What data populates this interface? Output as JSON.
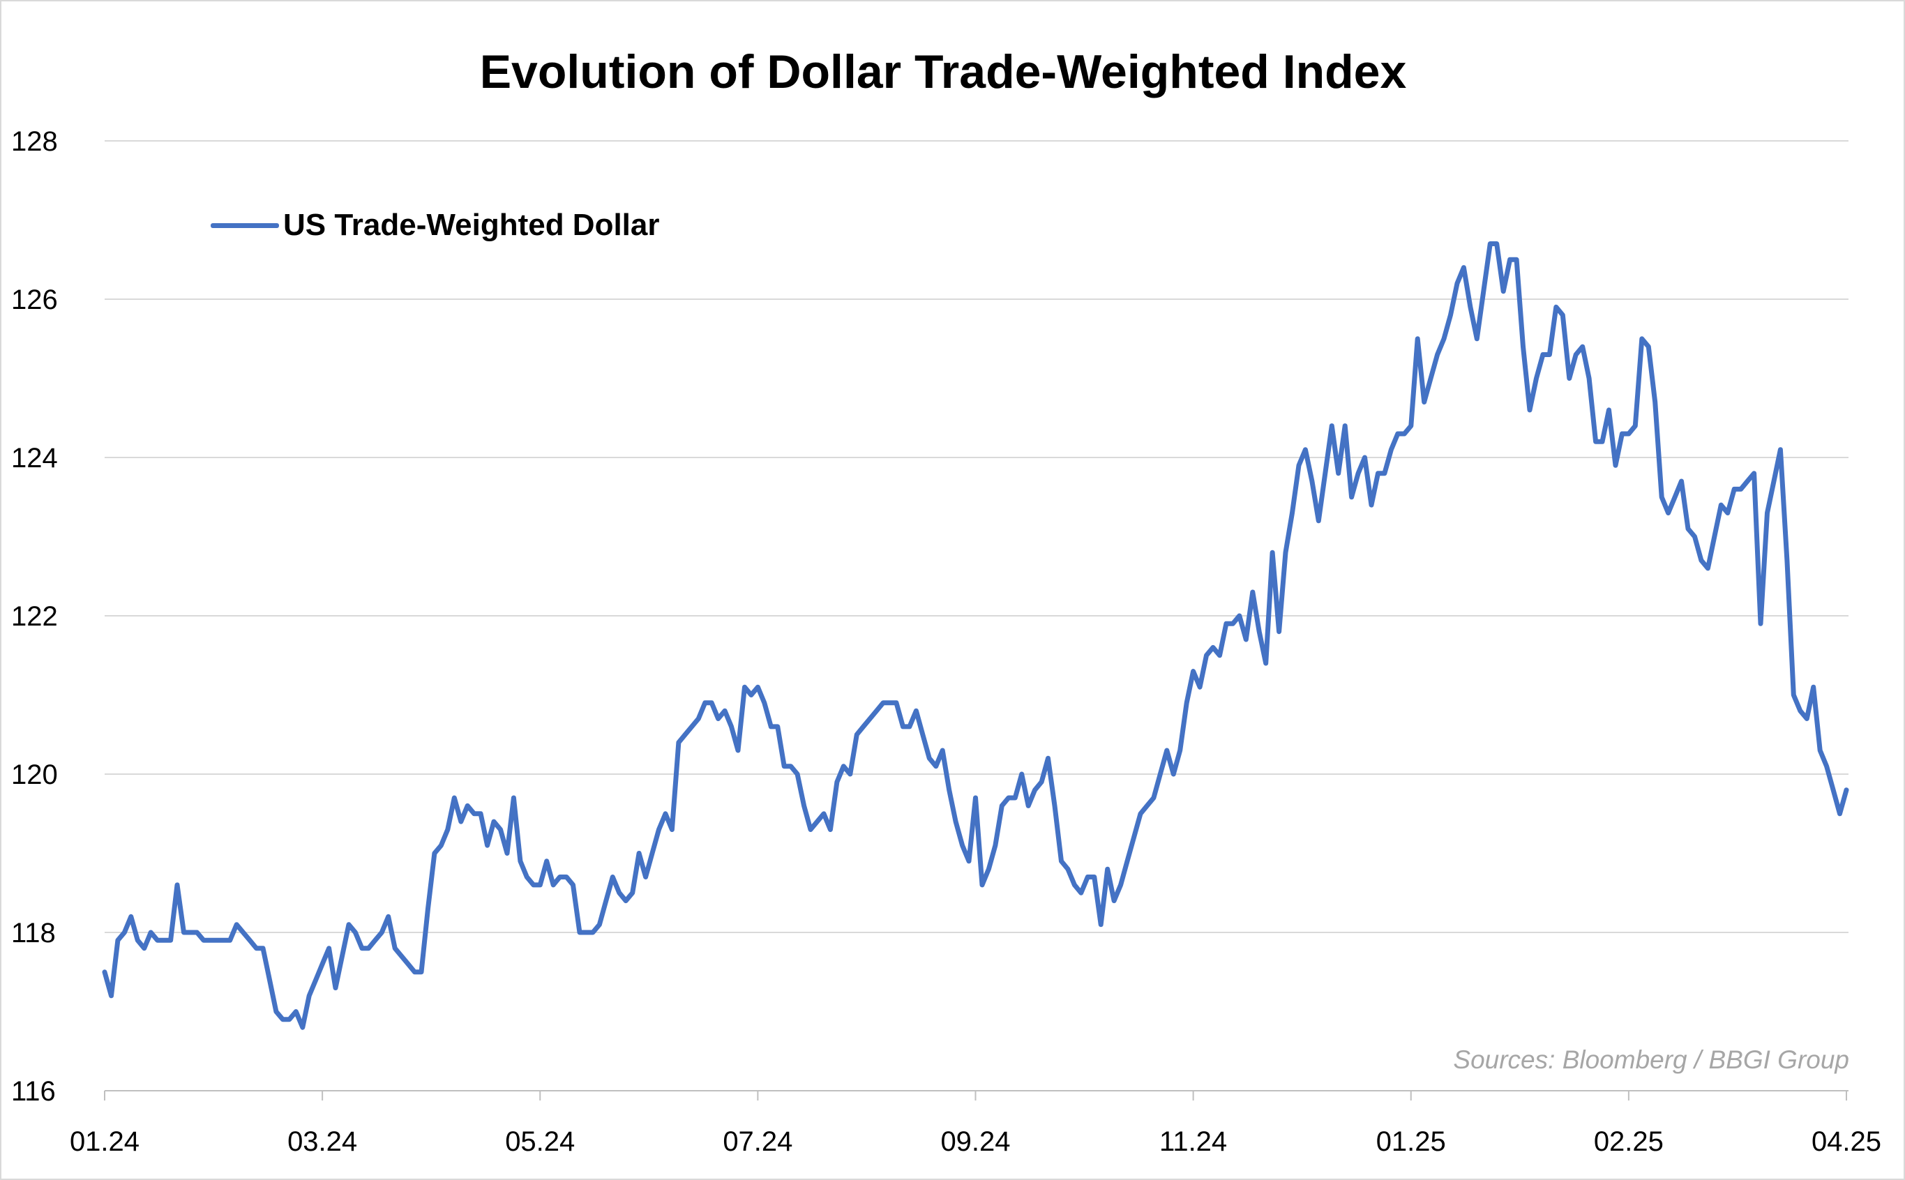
{
  "chart_data": {
    "type": "line",
    "title": "Evolution of Dollar Trade-Weighted Index",
    "source": "Sources: Bloomberg / BBGI Group",
    "xlabel": "",
    "ylabel": "",
    "ylim": [
      116,
      128
    ],
    "yticks": [
      "116",
      "118",
      "120",
      "122",
      "124",
      "126",
      "128"
    ],
    "xticks": [
      "01.24",
      "03.24",
      "05.24",
      "07.24",
      "09.24",
      "11.24",
      "01.25",
      "02.25",
      "04.25"
    ],
    "grid": "horizontal",
    "legend_position": "top-left",
    "series": [
      {
        "name": "US Trade-Weighted Dollar",
        "color": "#4472c4",
        "x_start": "01.24",
        "x_end": "04.25",
        "values": [
          117.5,
          117.2,
          117.9,
          118.0,
          118.2,
          117.9,
          117.8,
          118.0,
          117.9,
          117.9,
          117.9,
          118.6,
          118.0,
          118.0,
          118.0,
          117.9,
          117.9,
          117.9,
          117.9,
          117.9,
          118.1,
          118.0,
          117.9,
          117.8,
          117.8,
          117.4,
          117.0,
          116.9,
          116.9,
          117.0,
          116.8,
          117.2,
          117.4,
          117.6,
          117.8,
          117.3,
          117.7,
          118.1,
          118.0,
          117.8,
          117.8,
          117.9,
          118.0,
          118.2,
          117.8,
          117.7,
          117.6,
          117.5,
          117.5,
          118.3,
          119.0,
          119.1,
          119.3,
          119.7,
          119.4,
          119.6,
          119.5,
          119.5,
          119.1,
          119.4,
          119.3,
          119.0,
          119.7,
          118.9,
          118.7,
          118.6,
          118.6,
          118.9,
          118.6,
          118.7,
          118.7,
          118.6,
          118.0,
          118.0,
          118.0,
          118.1,
          118.4,
          118.7,
          118.5,
          118.4,
          118.5,
          119.0,
          118.7,
          119.0,
          119.3,
          119.5,
          119.3,
          120.4,
          120.5,
          120.6,
          120.7,
          120.9,
          120.9,
          120.7,
          120.8,
          120.6,
          120.3,
          121.1,
          121.0,
          121.1,
          120.9,
          120.6,
          120.6,
          120.1,
          120.1,
          120.0,
          119.6,
          119.3,
          119.4,
          119.5,
          119.3,
          119.9,
          120.1,
          120.0,
          120.5,
          120.6,
          120.7,
          120.8,
          120.9,
          120.9,
          120.9,
          120.6,
          120.6,
          120.8,
          120.5,
          120.2,
          120.1,
          120.3,
          119.8,
          119.4,
          119.1,
          118.9,
          119.7,
          118.6,
          118.8,
          119.1,
          119.6,
          119.7,
          119.7,
          120.0,
          119.6,
          119.8,
          119.9,
          120.2,
          119.6,
          118.9,
          118.8,
          118.6,
          118.5,
          118.7,
          118.7,
          118.1,
          118.8,
          118.4,
          118.6,
          118.9,
          119.2,
          119.5,
          119.6,
          119.7,
          120.0,
          120.3,
          120.0,
          120.3,
          120.9,
          121.3,
          121.1,
          121.5,
          121.6,
          121.5,
          121.9,
          121.9,
          122.0,
          121.7,
          122.3,
          121.8,
          121.4,
          122.8,
          121.8,
          122.8,
          123.3,
          123.9,
          124.1,
          123.7,
          123.2,
          123.8,
          124.4,
          123.8,
          124.4,
          123.5,
          123.8,
          124.0,
          123.4,
          123.8,
          123.8,
          124.1,
          124.3,
          124.3,
          124.4,
          125.5,
          124.7,
          125.0,
          125.3,
          125.5,
          125.8,
          126.2,
          126.4,
          125.9,
          125.5,
          126.1,
          126.7,
          126.7,
          126.1,
          126.5,
          126.5,
          125.4,
          124.6,
          125.0,
          125.3,
          125.3,
          125.9,
          125.8,
          125.0,
          125.3,
          125.4,
          125.0,
          124.2,
          124.2,
          124.6,
          123.9,
          124.3,
          124.3,
          124.4,
          125.5,
          125.4,
          124.7,
          123.5,
          123.3,
          123.5,
          123.7,
          123.1,
          123.0,
          122.7,
          122.6,
          123.0,
          123.4,
          123.3,
          123.6,
          123.6,
          123.7,
          123.8,
          121.9,
          123.3,
          123.7,
          124.1,
          122.7,
          121.0,
          120.8,
          120.7,
          121.1,
          120.3,
          120.1,
          119.8,
          119.5,
          119.8
        ]
      }
    ]
  }
}
